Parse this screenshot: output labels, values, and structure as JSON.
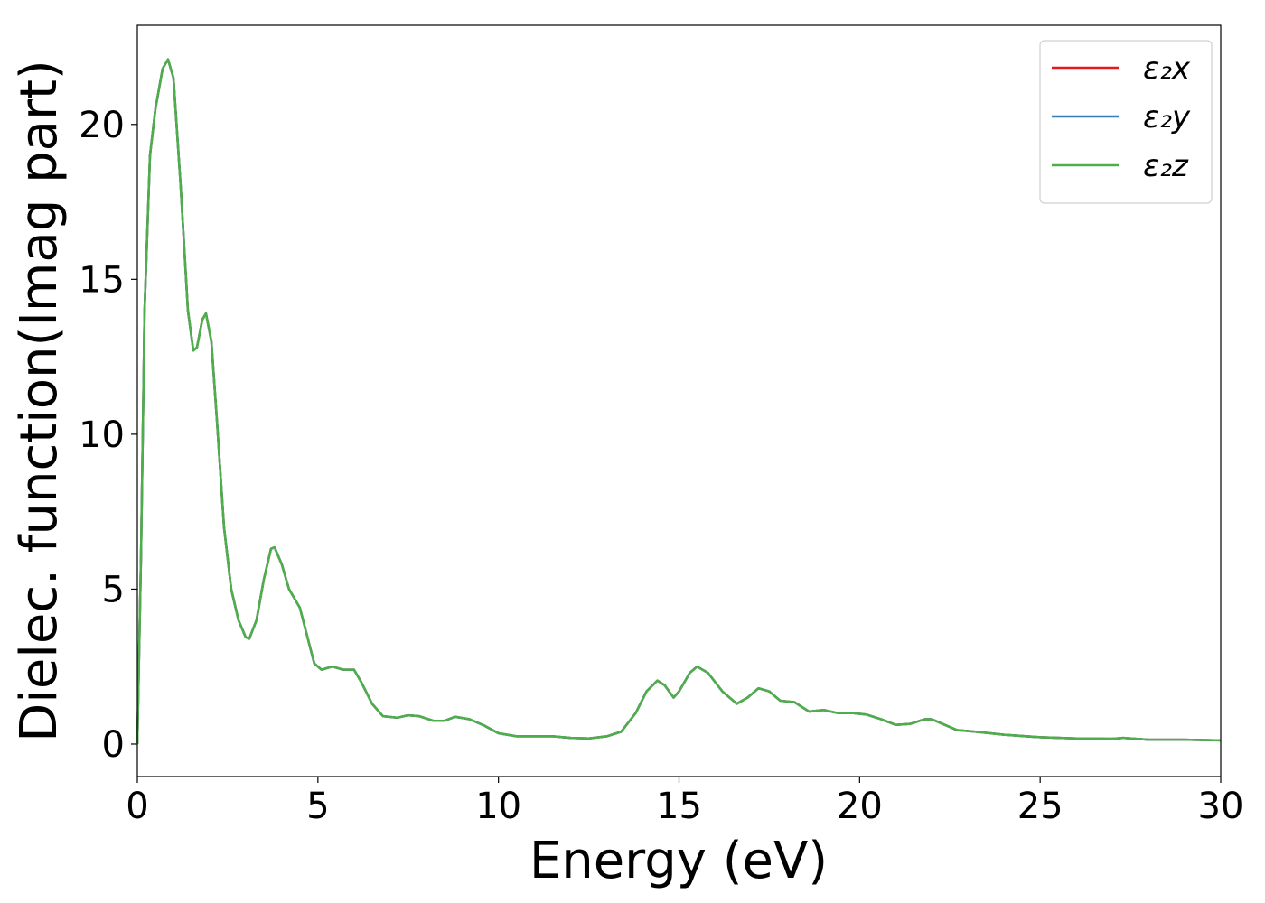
{
  "chart_data": {
    "type": "line",
    "xlabel": "Energy (eV)",
    "ylabel": "Dielec. function(Imag part)",
    "x": [
      0,
      0.1,
      0.2,
      0.35,
      0.5,
      0.7,
      0.85,
      1.0,
      1.2,
      1.4,
      1.55,
      1.65,
      1.8,
      1.9,
      2.05,
      2.2,
      2.4,
      2.6,
      2.8,
      3.0,
      3.1,
      3.3,
      3.5,
      3.7,
      3.8,
      4.0,
      4.2,
      4.5,
      4.7,
      4.9,
      5.1,
      5.4,
      5.7,
      6.0,
      6.2,
      6.5,
      6.8,
      7.2,
      7.5,
      7.8,
      8.2,
      8.5,
      8.8,
      9.2,
      9.6,
      10.0,
      10.5,
      11.0,
      11.5,
      12.0,
      12.5,
      13.0,
      13.4,
      13.8,
      14.1,
      14.4,
      14.6,
      14.85,
      15.0,
      15.3,
      15.5,
      15.8,
      16.2,
      16.6,
      16.9,
      17.2,
      17.5,
      17.8,
      18.2,
      18.6,
      19.0,
      19.4,
      19.8,
      20.2,
      20.6,
      21.0,
      21.4,
      21.8,
      22.0,
      22.3,
      22.7,
      23.2,
      24.0,
      25.0,
      26.0,
      27.0,
      27.3,
      28.0,
      29.0,
      30.0
    ],
    "series": [
      {
        "name": "ε₂x",
        "color": "#e41a1c",
        "values": [
          0,
          6,
          14,
          19,
          20.5,
          21.8,
          22.1,
          21.5,
          18,
          14,
          12.7,
          12.8,
          13.7,
          13.9,
          13,
          10.5,
          7,
          5,
          4,
          3.45,
          3.4,
          4,
          5.3,
          6.3,
          6.35,
          5.8,
          5,
          4.4,
          3.5,
          2.6,
          2.4,
          2.5,
          2.4,
          2.4,
          2.0,
          1.3,
          0.9,
          0.85,
          0.93,
          0.9,
          0.75,
          0.75,
          0.88,
          0.8,
          0.6,
          0.35,
          0.25,
          0.25,
          0.25,
          0.2,
          0.18,
          0.25,
          0.4,
          1.0,
          1.7,
          2.05,
          1.9,
          1.5,
          1.7,
          2.3,
          2.5,
          2.3,
          1.7,
          1.3,
          1.5,
          1.8,
          1.7,
          1.4,
          1.35,
          1.05,
          1.1,
          1.0,
          1.0,
          0.95,
          0.8,
          0.62,
          0.65,
          0.8,
          0.8,
          0.65,
          0.45,
          0.4,
          0.3,
          0.22,
          0.18,
          0.17,
          0.2,
          0.14,
          0.14,
          0.12
        ]
      },
      {
        "name": "ε₂y",
        "color": "#377eb8",
        "values": [
          0,
          6,
          14,
          19,
          20.5,
          21.8,
          22.1,
          21.5,
          18,
          14,
          12.7,
          12.8,
          13.7,
          13.9,
          13,
          10.5,
          7,
          5,
          4,
          3.45,
          3.4,
          4,
          5.3,
          6.3,
          6.35,
          5.8,
          5,
          4.4,
          3.5,
          2.6,
          2.4,
          2.5,
          2.4,
          2.4,
          2.0,
          1.3,
          0.9,
          0.85,
          0.93,
          0.9,
          0.75,
          0.75,
          0.88,
          0.8,
          0.6,
          0.35,
          0.25,
          0.25,
          0.25,
          0.2,
          0.18,
          0.25,
          0.4,
          1.0,
          1.7,
          2.05,
          1.9,
          1.5,
          1.7,
          2.3,
          2.5,
          2.3,
          1.7,
          1.3,
          1.5,
          1.8,
          1.7,
          1.4,
          1.35,
          1.05,
          1.1,
          1.0,
          1.0,
          0.95,
          0.8,
          0.62,
          0.65,
          0.8,
          0.8,
          0.65,
          0.45,
          0.4,
          0.3,
          0.22,
          0.18,
          0.17,
          0.2,
          0.14,
          0.14,
          0.12
        ]
      },
      {
        "name": "ε₂z",
        "color": "#4daf4a",
        "values": [
          0,
          6,
          14,
          19,
          20.5,
          21.8,
          22.1,
          21.5,
          18,
          14,
          12.7,
          12.8,
          13.7,
          13.9,
          13,
          10.5,
          7,
          5,
          4,
          3.45,
          3.4,
          4,
          5.3,
          6.3,
          6.35,
          5.8,
          5,
          4.4,
          3.5,
          2.6,
          2.4,
          2.5,
          2.4,
          2.4,
          2.0,
          1.3,
          0.9,
          0.85,
          0.93,
          0.9,
          0.75,
          0.75,
          0.88,
          0.8,
          0.6,
          0.35,
          0.25,
          0.25,
          0.25,
          0.2,
          0.18,
          0.25,
          0.4,
          1.0,
          1.7,
          2.05,
          1.9,
          1.5,
          1.7,
          2.3,
          2.5,
          2.3,
          1.7,
          1.3,
          1.5,
          1.8,
          1.7,
          1.4,
          1.35,
          1.05,
          1.1,
          1.0,
          1.0,
          0.95,
          0.8,
          0.62,
          0.65,
          0.8,
          0.8,
          0.65,
          0.45,
          0.4,
          0.3,
          0.22,
          0.18,
          0.17,
          0.2,
          0.14,
          0.14,
          0.12
        ]
      }
    ],
    "xlim": [
      0,
      30
    ],
    "xticks": [
      0,
      5,
      10,
      15,
      20,
      25,
      30
    ],
    "ylim": [
      -1.05,
      23.2
    ],
    "yticks": [
      0,
      5,
      10,
      15,
      20
    ],
    "grid": false,
    "legend": "upper right"
  }
}
